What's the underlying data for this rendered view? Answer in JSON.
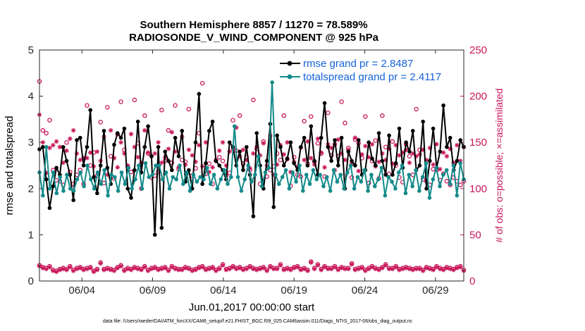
{
  "chart_data": {
    "type": "line",
    "title_line1": "Southern Hemisphere 8857 / 11270 = 78.589%",
    "title_line2": "RADIOSONDE_V_WIND_COMPONENT @ 925 hPa",
    "xlabel": "Jun.01,2017 00:00:00 start",
    "ylabel_left": "rmse and totalspread",
    "ylabel_right": "# of obs: o=possible; ×=assimilated",
    "footnote": "data file: /Users/raeder/DAI/ATM_forcXX/CAM6_setup/f.e21.FHIST_BGC.f09_025.CAM6assim.011/Diags_NTrS_2017-06/obs_diag_output.nc",
    "x_range": [
      1.0,
      31.0
    ],
    "ylim_left": [
      0,
      5
    ],
    "ylim_right": [
      0,
      250
    ],
    "yticks_left": [
      "0",
      "1",
      "2",
      "3",
      "4",
      "5"
    ],
    "yticks_right": [
      "0",
      "50",
      "100",
      "150",
      "200",
      "250"
    ],
    "xticks": [
      {
        "day": 4,
        "label": "06/04"
      },
      {
        "day": 9,
        "label": "06/09"
      },
      {
        "day": 14,
        "label": "06/14"
      },
      {
        "day": 19,
        "label": "06/19"
      },
      {
        "day": 24,
        "label": "06/24"
      },
      {
        "day": 29,
        "label": "06/29"
      }
    ],
    "legend": [
      {
        "label": "rmse grand pr = 2.8487",
        "color": "#000000"
      },
      {
        "label": "totalspread grand pr = 2.4117",
        "color": "#148a8a"
      }
    ],
    "series": [
      {
        "name": "rmse",
        "color": "#000000",
        "axis": "left",
        "values": [
          2.85,
          2.9,
          2.2,
          1.58,
          2.05,
          2.45,
          2.3,
          2.9,
          2.6,
          2.3,
          1.75,
          3.05,
          3.1,
          2.5,
          2.9,
          3.7,
          2.25,
          1.9,
          2.5,
          3.25,
          2.45,
          2.1,
          2.95,
          3.2,
          3.1,
          3.3,
          2.0,
          1.8,
          2.4,
          3.45,
          2.35,
          2.9,
          3.35,
          2.7,
          1.0,
          2.9,
          1.15,
          2.8,
          2.6,
          2.4,
          3.1,
          2.7,
          3.25,
          2.15,
          2.4,
          2.0,
          3.0,
          4.05,
          2.1,
          2.55,
          3.25,
          3.45,
          2.6,
          2.5,
          2.4,
          2.2,
          3.0,
          2.9,
          2.5,
          2.8,
          2.4,
          2.9,
          2.3,
          1.4,
          3.2,
          2.5,
          2.0,
          2.6,
          3.4,
          1.6,
          3.15,
          2.9,
          2.5,
          2.65,
          3.0,
          2.55,
          2.4,
          2.9,
          3.1,
          2.5,
          3.35,
          2.6,
          2.3,
          3.1,
          3.85,
          2.9,
          2.6,
          3.05,
          2.5,
          3.1,
          2.0,
          2.8,
          2.6,
          2.5,
          3.05,
          2.3,
          2.4,
          3.0,
          2.65,
          2.5,
          3.2,
          2.6,
          2.3,
          3.15,
          2.3,
          2.55,
          3.3,
          2.45,
          3.0,
          2.8,
          3.25,
          2.4,
          2.5,
          3.45,
          2.0,
          2.6,
          3.3,
          2.45,
          2.8,
          3.8,
          2.9,
          3.1,
          2.4,
          2.6,
          3.05,
          2.9
        ]
      },
      {
        "name": "totalspread",
        "color": "#148a8a",
        "axis": "left",
        "values": [
          2.35,
          1.85,
          2.9,
          2.0,
          2.35,
          1.9,
          2.25,
          1.95,
          2.3,
          2.0,
          1.95,
          2.2,
          2.35,
          2.05,
          2.5,
          2.2,
          2.0,
          2.35,
          2.1,
          2.4,
          1.85,
          2.3,
          2.25,
          1.95,
          2.35,
          2.1,
          2.45,
          2.0,
          2.2,
          2.5,
          2.0,
          2.55,
          2.25,
          2.3,
          2.5,
          2.5,
          2.2,
          2.35,
          2.0,
          2.25,
          2.2,
          2.5,
          2.1,
          2.35,
          1.95,
          2.3,
          2.15,
          2.25,
          2.2,
          2.45,
          2.1,
          2.3,
          2.0,
          2.2,
          2.4,
          2.1,
          2.25,
          3.35,
          2.25,
          1.95,
          2.2,
          2.5,
          2.15,
          2.3,
          2.7,
          2.05,
          2.35,
          2.45,
          4.3,
          2.3,
          2.1,
          2.25,
          2.4,
          2.0,
          2.35,
          2.15,
          2.5,
          1.95,
          2.3,
          2.1,
          2.4,
          2.2,
          2.3,
          2.05,
          2.25,
          1.95,
          2.4,
          2.15,
          2.3,
          2.0,
          2.35,
          2.5,
          2.0,
          2.25,
          2.15,
          2.4,
          1.95,
          2.3,
          2.05,
          2.2,
          2.45,
          1.85,
          2.25,
          2.15,
          2.0,
          2.35,
          2.5,
          1.9,
          2.3,
          2.05,
          2.4,
          1.95,
          2.25,
          2.55,
          1.8,
          2.2,
          2.45,
          2.05,
          2.3,
          2.4,
          2.1,
          2.5,
          1.85,
          2.55,
          2.2
        ]
      },
      {
        "name": "possible",
        "color": "#c8175a",
        "axis": "right",
        "marker": "circle",
        "values": [
          216,
          163,
          160,
          174,
          120,
          109,
          108,
          104,
          150,
          118,
          105,
          115,
          120,
          105,
          190,
          125,
          139,
          114,
          172,
          106,
          188,
          135,
          111,
          159,
          194,
          142,
          124,
          118,
          196,
          149,
          100,
          179,
          138,
          112,
          114,
          118,
          185,
          130,
          163,
          128,
          190,
          121,
          131,
          129,
          186,
          114,
          122,
          160,
          214,
          116,
          127,
          105,
          130,
          134,
          130,
          114,
          117,
          174,
          141,
          179,
          127,
          134,
          120,
          196,
          143,
          105,
          151,
          113,
          120,
          124,
          138,
          131,
          179,
          132,
          103,
          134,
          115,
          113,
          173,
          127,
          178,
          129,
          149,
          138,
          113,
          182,
          136,
          148,
          135,
          194,
          171,
          144,
          112,
          153,
          149,
          133,
          178,
          106,
          130,
          152,
          111,
          179,
          145,
          116,
          151,
          125,
          112,
          107,
          148,
          135,
          115,
          186,
          142,
          110,
          108,
          104,
          121,
          120,
          109,
          116,
          108,
          104,
          112,
          108,
          104,
          108
        ]
      },
      {
        "name": "assimilated",
        "color": "#c8175a",
        "axis": "right",
        "marker": "asterisk",
        "values": [
          180,
          150,
          117,
          144,
          147,
          151,
          145,
          128,
          141,
          154,
          163,
          138,
          131,
          133,
          133,
          139,
          124,
          140,
          130,
          156,
          115,
          163,
          133,
          123,
          150,
          138,
          125,
          159,
          145,
          134,
          128,
          163,
          139,
          135,
          138,
          150,
          128,
          134,
          143,
          161,
          140,
          123,
          156,
          126,
          142,
          136,
          129,
          147,
          124,
          150,
          118,
          123,
          131,
          141,
          150,
          125,
          140,
          143,
          166,
          135,
          142,
          131,
          122,
          138,
          145,
          136,
          149,
          125,
          157,
          115,
          126,
          147,
          137,
          150,
          118,
          129,
          124,
          144,
          131,
          151,
          133,
          126,
          154,
          139,
          123,
          148,
          144,
          120,
          153,
          138,
          131,
          142,
          127,
          155,
          119,
          137,
          146,
          134,
          148,
          124,
          129,
          138,
          131,
          143,
          127,
          147,
          136,
          139,
          142,
          128,
          138,
          135,
          137,
          142,
          131,
          144,
          126,
          148,
          121,
          139,
          135,
          143,
          128,
          147,
          130,
          145
        ]
      },
      {
        "name": "possible_low",
        "color": "#c8175a",
        "axis": "right",
        "marker": "circle",
        "values": [
          17,
          15,
          14,
          16,
          12,
          11,
          13,
          14,
          13,
          16,
          12,
          14,
          15,
          13,
          14,
          15,
          11,
          13,
          20,
          13,
          14,
          13,
          12,
          15,
          17,
          12,
          14,
          13,
          15,
          14,
          13,
          16,
          12,
          14,
          15,
          13,
          14,
          15,
          12,
          16,
          14,
          13,
          13,
          15,
          14,
          12,
          13,
          15,
          16,
          13,
          14,
          15,
          12,
          14,
          18,
          13,
          14,
          16,
          14,
          15,
          13,
          14,
          16,
          14,
          13,
          14,
          15,
          12,
          16,
          14,
          14,
          18,
          13,
          14,
          13,
          15,
          16,
          13,
          14,
          12,
          21,
          14,
          18,
          13,
          16,
          14,
          14,
          16,
          13,
          15,
          14,
          14,
          19,
          13,
          14,
          15,
          12,
          14,
          16,
          14,
          13,
          15,
          18,
          14,
          14,
          16,
          13,
          14,
          15,
          14,
          13,
          14,
          14,
          12,
          15,
          14,
          13,
          16,
          14,
          13,
          15,
          14,
          13,
          15,
          16,
          12
        ]
      },
      {
        "name": "assimilated_low",
        "color": "#c8175a",
        "axis": "right",
        "marker": "asterisk",
        "values": [
          16,
          14,
          13,
          15,
          11,
          10,
          12,
          13,
          12,
          15,
          11,
          13,
          14,
          12,
          13,
          14,
          10,
          12,
          19,
          12,
          13,
          12,
          11,
          14,
          16,
          11,
          13,
          12,
          14,
          13,
          12,
          15,
          11,
          13,
          14,
          12,
          13,
          14,
          11,
          15,
          13,
          12,
          12,
          14,
          13,
          11,
          12,
          14,
          15,
          12,
          13,
          14,
          11,
          13,
          17,
          12,
          13,
          15,
          13,
          14,
          12,
          13,
          15,
          13,
          12,
          13,
          14,
          11,
          15,
          13,
          13,
          17,
          12,
          13,
          12,
          14,
          15,
          12,
          13,
          11,
          20,
          13,
          17,
          12,
          15,
          13,
          13,
          15,
          12,
          14,
          13,
          13,
          18,
          12,
          13,
          14,
          11,
          13,
          15,
          13,
          12,
          14,
          17,
          13,
          13,
          15,
          12,
          13,
          14,
          13,
          12,
          13,
          13,
          11,
          14,
          13,
          12,
          15,
          13,
          12,
          14,
          13,
          12,
          14,
          15,
          11
        ]
      }
    ]
  }
}
